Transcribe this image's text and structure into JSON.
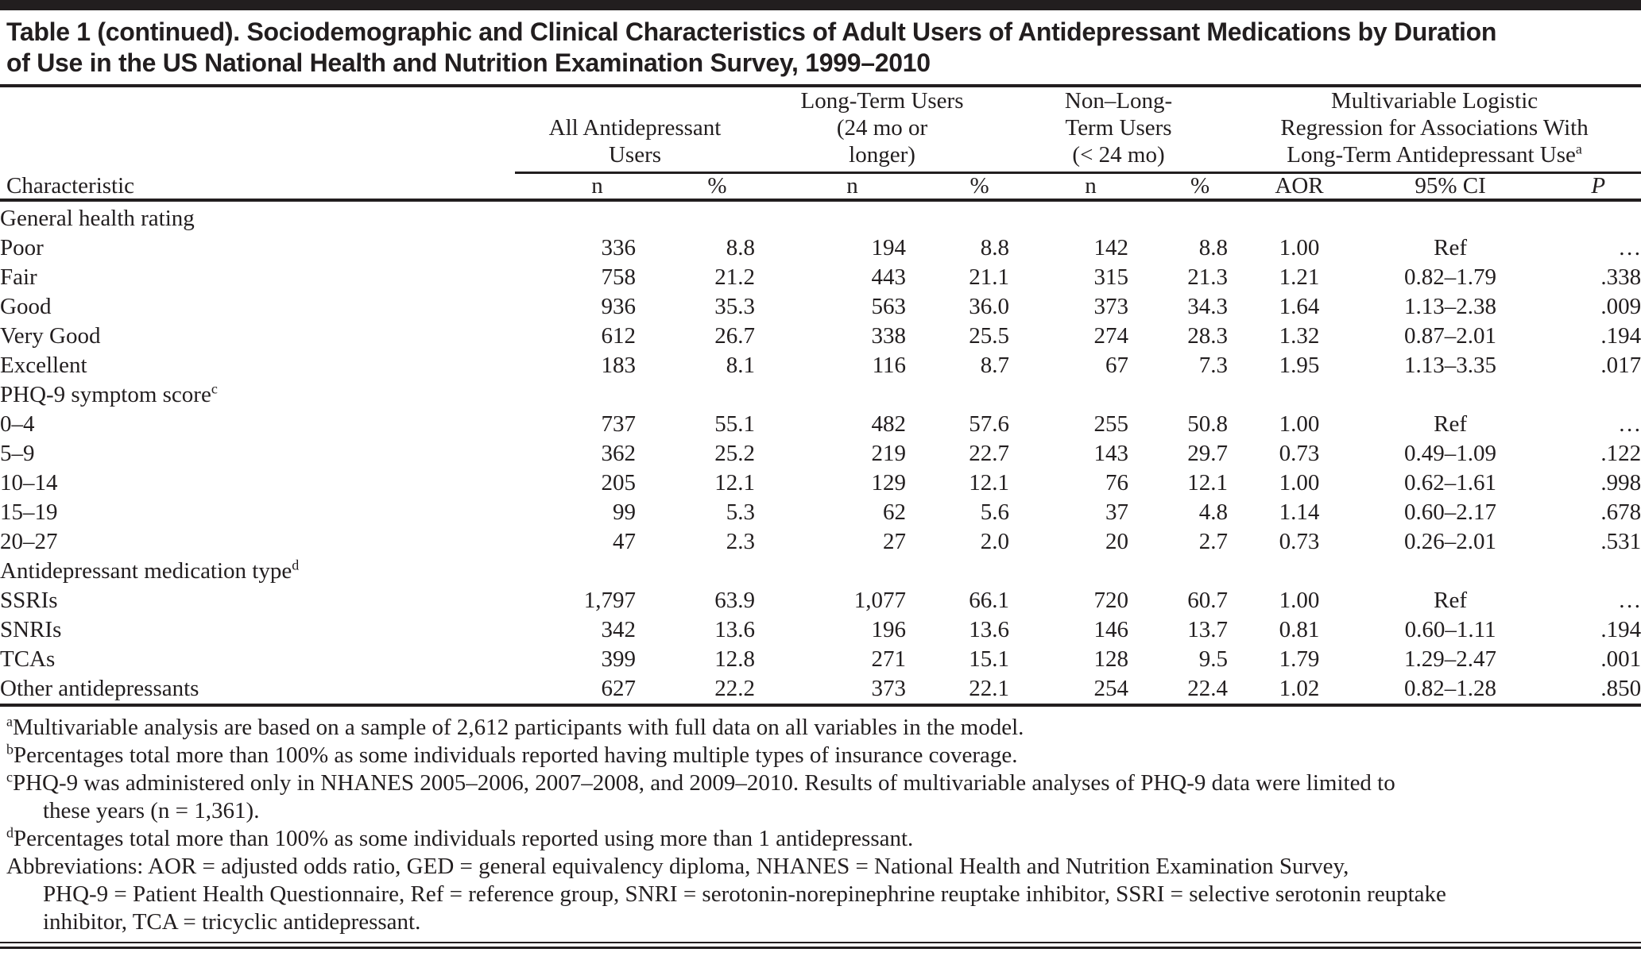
{
  "title": {
    "lines": [
      "Table 1 (continued). Sociodemographic and Clinical Characteristics of Adult Users of Antidepressant Medications by Duration",
      "of Use in the US National Health and Nutrition Examination Survey, 1999–2010"
    ]
  },
  "header": {
    "characteristic": "Characteristic",
    "groups": [
      {
        "label": "All Antidepressant Users",
        "lines": [
          "All Antidepressant",
          "Users"
        ],
        "sup": "",
        "columns": [
          {
            "label": "n",
            "key": "n"
          },
          {
            "label": "%",
            "key": "pct"
          }
        ]
      },
      {
        "label": "Long-Term Users (24 mo or longer)",
        "lines": [
          "Long-Term Users",
          "(24 mo or",
          "longer)"
        ],
        "sup": "",
        "columns": [
          {
            "label": "n",
            "key": "n"
          },
          {
            "label": "%",
            "key": "pct"
          }
        ]
      },
      {
        "label": "Non–Long-Term Users (<24 mo)",
        "lines": [
          "Non–Long-",
          "Term Users",
          "(< 24 mo)"
        ],
        "sup": "",
        "columns": [
          {
            "label": "n",
            "key": "n"
          },
          {
            "label": "%",
            "key": "pct"
          }
        ]
      },
      {
        "label": "Multivariable Logistic Regression for Associations With Long-Term Antidepressant Use",
        "lines": [
          "Multivariable Logistic",
          "Regression for Associations With",
          "Long-Term Antidepressant Use"
        ],
        "sup": "a",
        "columns": [
          {
            "label": "AOR",
            "key": "aor"
          },
          {
            "label": "95% CI",
            "key": "ci"
          },
          {
            "label": "P",
            "key": "p"
          }
        ]
      }
    ]
  },
  "column_keys": [
    "n",
    "pct",
    "n",
    "pct",
    "n",
    "pct",
    "aor",
    "ci",
    "p"
  ],
  "sections": [
    {
      "label": "General health rating",
      "sup": "",
      "rows": [
        {
          "label": "Poor",
          "values": [
            "336",
            "8.8",
            "194",
            "8.8",
            "142",
            "8.8",
            "1.00",
            "Ref",
            "…"
          ]
        },
        {
          "label": "Fair",
          "values": [
            "758",
            "21.2",
            "443",
            "21.1",
            "315",
            "21.3",
            "1.21",
            "0.82–1.79",
            ".338"
          ]
        },
        {
          "label": "Good",
          "values": [
            "936",
            "35.3",
            "563",
            "36.0",
            "373",
            "34.3",
            "1.64",
            "1.13–2.38",
            ".009"
          ]
        },
        {
          "label": "Very Good",
          "values": [
            "612",
            "26.7",
            "338",
            "25.5",
            "274",
            "28.3",
            "1.32",
            "0.87–2.01",
            ".194"
          ]
        },
        {
          "label": "Excellent",
          "values": [
            "183",
            "8.1",
            "116",
            "8.7",
            "67",
            "7.3",
            "1.95",
            "1.13–3.35",
            ".017"
          ]
        }
      ]
    },
    {
      "label": "PHQ-9 symptom score",
      "sup": "c",
      "rows": [
        {
          "label": "0–4",
          "values": [
            "737",
            "55.1",
            "482",
            "57.6",
            "255",
            "50.8",
            "1.00",
            "Ref",
            "…"
          ]
        },
        {
          "label": "5–9",
          "values": [
            "362",
            "25.2",
            "219",
            "22.7",
            "143",
            "29.7",
            "0.73",
            "0.49–1.09",
            ".122"
          ]
        },
        {
          "label": "10–14",
          "values": [
            "205",
            "12.1",
            "129",
            "12.1",
            "76",
            "12.1",
            "1.00",
            "0.62–1.61",
            ".998"
          ]
        },
        {
          "label": "15–19",
          "values": [
            "99",
            "5.3",
            "62",
            "5.6",
            "37",
            "4.8",
            "1.14",
            "0.60–2.17",
            ".678"
          ]
        },
        {
          "label": "20–27",
          "values": [
            "47",
            "2.3",
            "27",
            "2.0",
            "20",
            "2.7",
            "0.73",
            "0.26–2.01",
            ".531"
          ]
        }
      ]
    },
    {
      "label": "Antidepressant medication type",
      "sup": "d",
      "rows": [
        {
          "label": "SSRIs",
          "values": [
            "1,797",
            "63.9",
            "1,077",
            "66.1",
            "720",
            "60.7",
            "1.00",
            "Ref",
            "…"
          ]
        },
        {
          "label": "SNRIs",
          "values": [
            "342",
            "13.6",
            "196",
            "13.6",
            "146",
            "13.7",
            "0.81",
            "0.60–1.11",
            ".194"
          ]
        },
        {
          "label": "TCAs",
          "values": [
            "399",
            "12.8",
            "271",
            "15.1",
            "128",
            "9.5",
            "1.79",
            "1.29–2.47",
            ".001"
          ]
        },
        {
          "label": "Other antidepressants",
          "values": [
            "627",
            "22.2",
            "373",
            "22.1",
            "254",
            "22.4",
            "1.02",
            "0.82–1.28",
            ".850"
          ]
        }
      ]
    }
  ],
  "footnotes": [
    {
      "sup": "a",
      "lines": [
        "Multivariable analysis are based on a sample of 2,612 participants with full data on all variables in the model."
      ]
    },
    {
      "sup": "b",
      "lines": [
        "Percentages total more than 100% as some individuals reported having multiple types of insurance coverage."
      ]
    },
    {
      "sup": "c",
      "lines": [
        "PHQ-9 was administered only in NHANES 2005–2006, 2007–2008, and 2009–2010. Results of multivariable analyses of PHQ-9 data were limited to",
        "these years (n = 1,361)."
      ]
    },
    {
      "sup": "d",
      "lines": [
        "Percentages total more than 100% as some individuals reported using more than 1 antidepressant."
      ]
    },
    {
      "sup": "",
      "lines": [
        "Abbreviations: AOR = adjusted odds ratio, GED = general equivalency diploma, NHANES = National Health and Nutrition Examination Survey,",
        "PHQ-9 = Patient Health Questionnaire, Ref = reference group, SNRI = serotonin-norepinephrine reuptake inhibitor, SSRI = selective serotonin reuptake",
        "inhibitor, TCA = tricyclic antidepressant."
      ]
    }
  ],
  "colors": {
    "ink": "#221e1f",
    "background": "#ffffff"
  }
}
